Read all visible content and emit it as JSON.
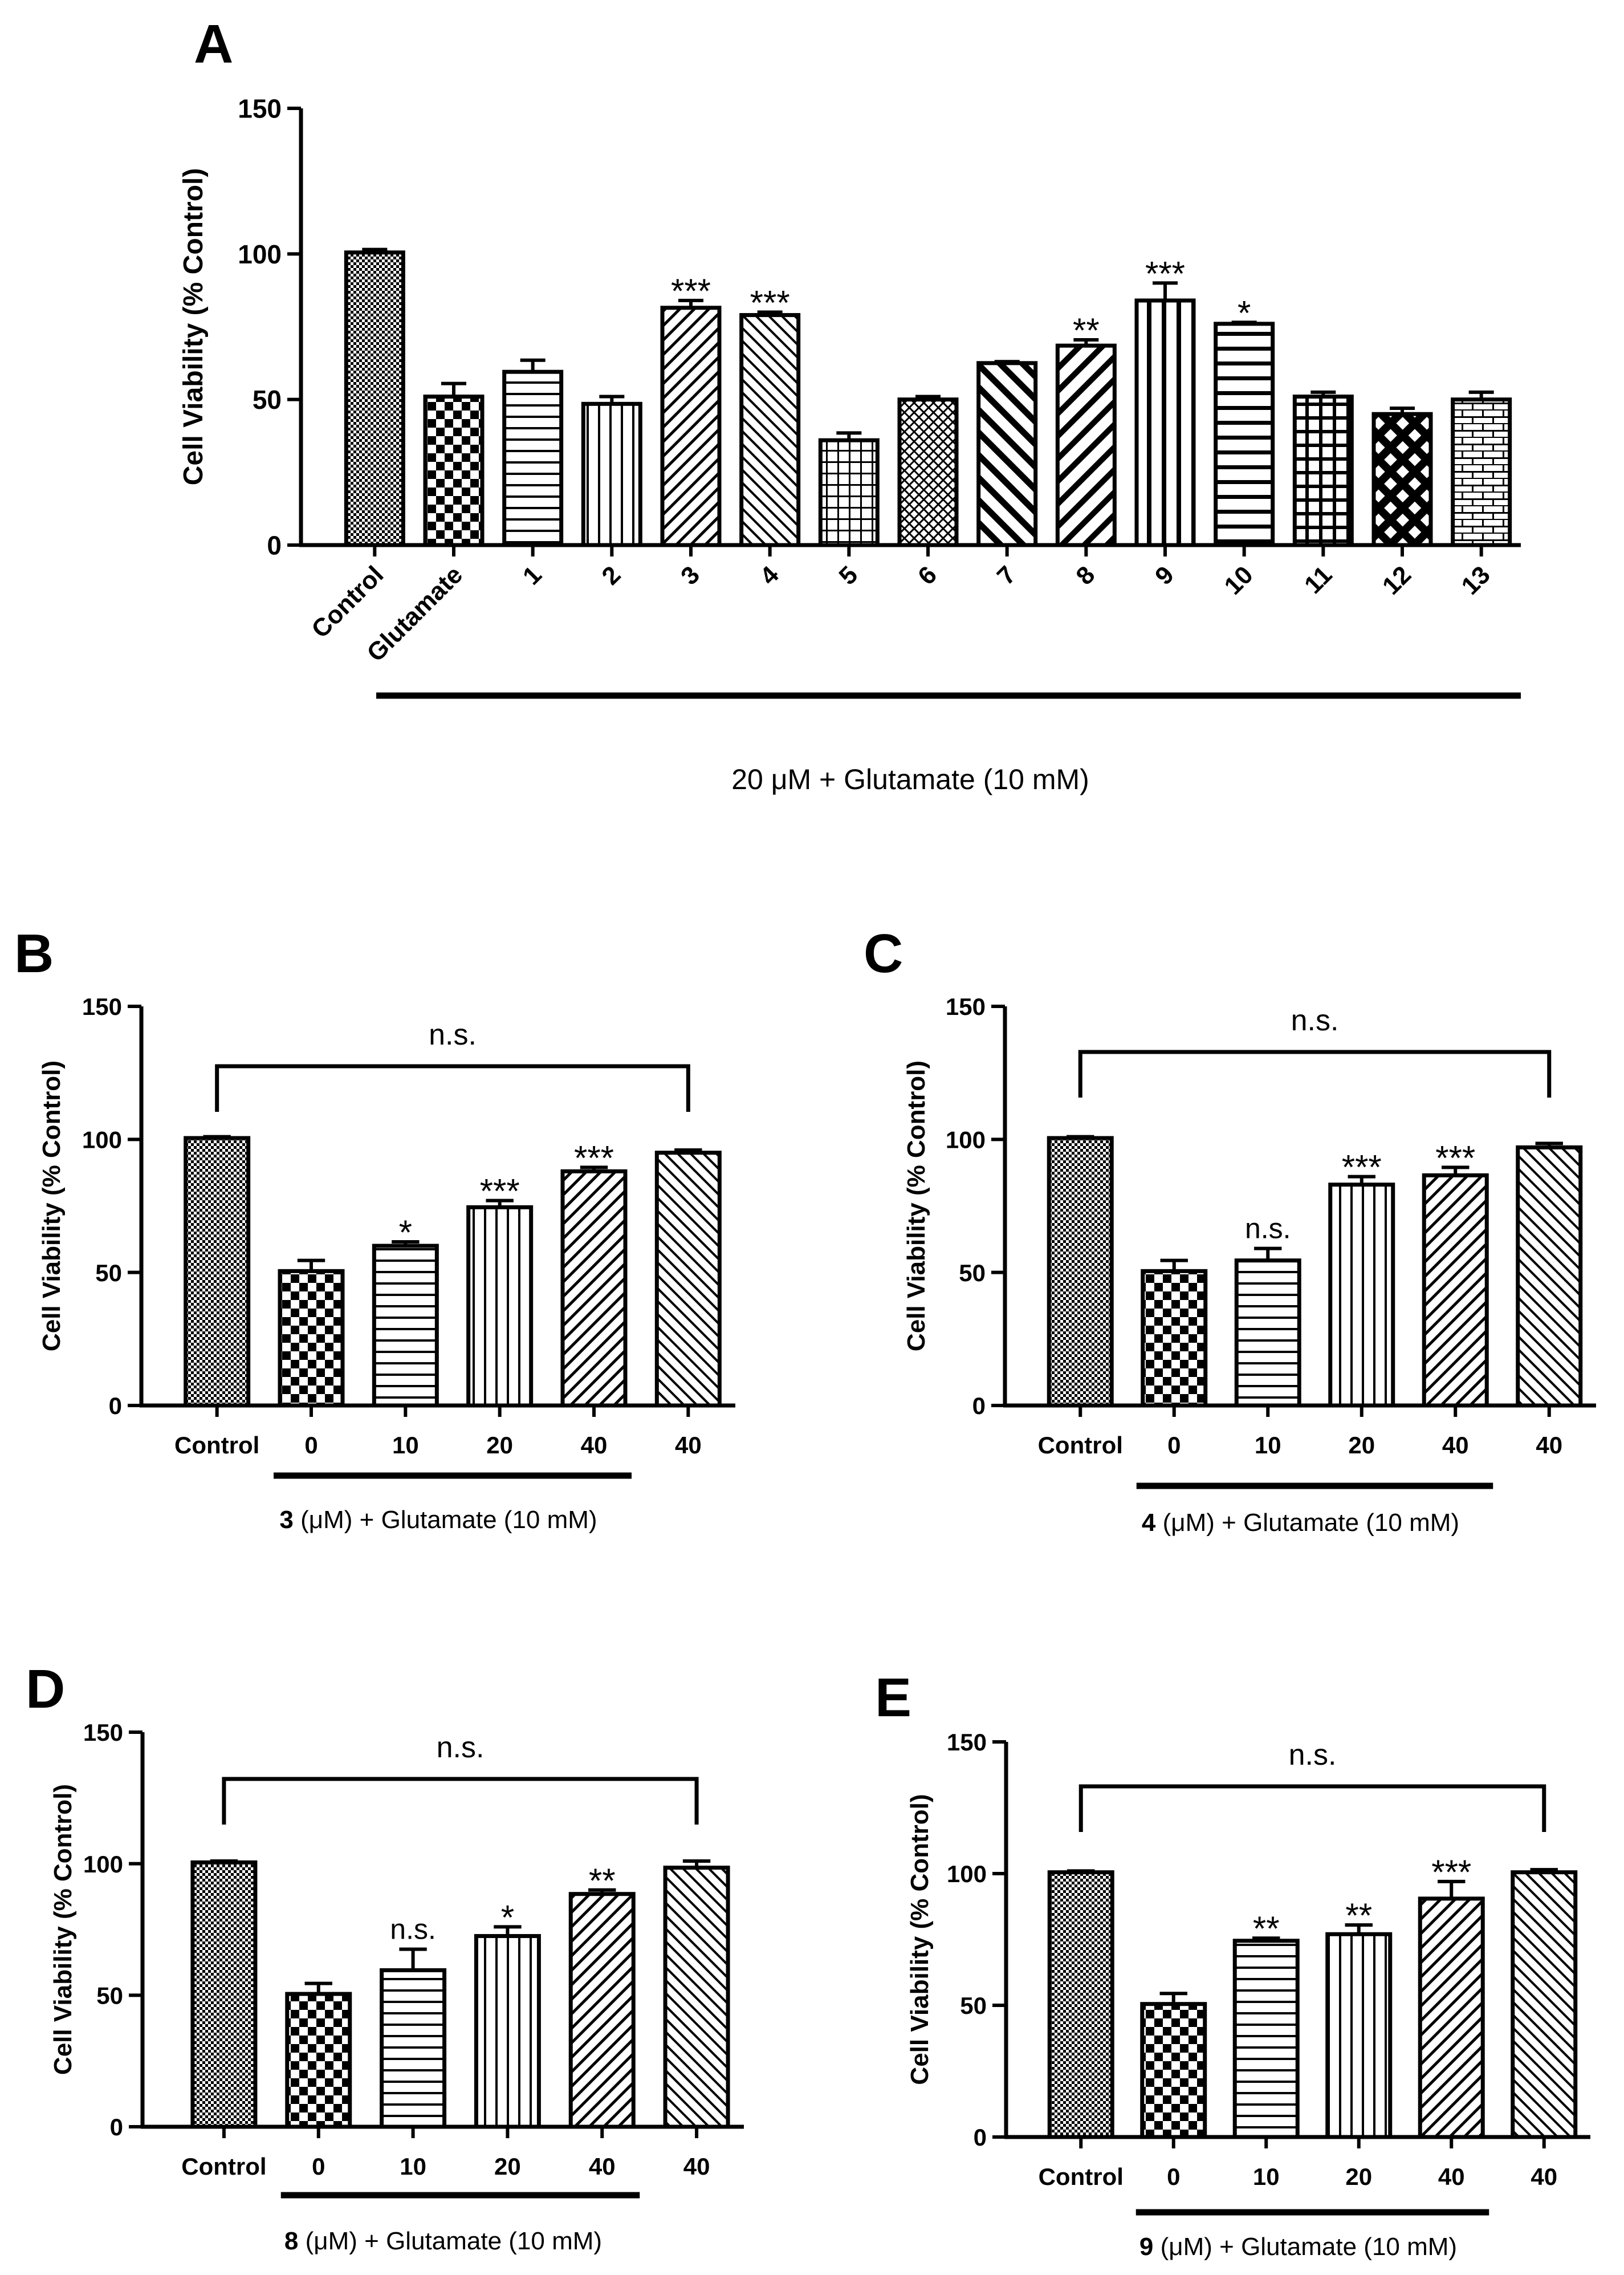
{
  "figure": {
    "colors": {
      "ink": "#000000",
      "paper": "#ffffff"
    },
    "patterns": [
      "checker-dense",
      "checker-open",
      "horizontal-lines",
      "vertical-lines",
      "diagonal-up",
      "diagonal-down",
      "grid",
      "dot-grid",
      "diagonal-down-thick",
      "diagonal-up-thick",
      "vertical-thick",
      "horizontal-thick",
      "grid-thick",
      "diamond-lattice",
      "brick"
    ]
  },
  "chart_data": [
    {
      "panel": "A",
      "type": "bar",
      "ylabel": "Cell Viability (% Control)",
      "ylim": [
        0,
        150
      ],
      "yticks": [
        "0",
        "50",
        "100",
        "150"
      ],
      "categories": [
        "Control",
        "Glutamate",
        "1",
        "2",
        "3",
        "4",
        "5",
        "6",
        "7",
        "8",
        "9",
        "10",
        "11",
        "12",
        "13"
      ],
      "values": [
        100.5,
        51,
        59.5,
        48.5,
        81.5,
        79,
        36,
        50,
        62.5,
        68.5,
        84,
        76,
        51,
        45,
        50
      ],
      "errors": [
        1,
        4.5,
        4,
        2.5,
        2.5,
        1,
        2.5,
        1,
        0.5,
        2,
        6,
        0.5,
        1.5,
        2,
        2.5
      ],
      "significance": [
        "",
        "",
        "",
        "",
        "***",
        "***",
        "",
        "",
        "",
        "**",
        "***",
        "*",
        "",
        "",
        ""
      ],
      "bar_patterns": [
        "checker-dense",
        "checker-open",
        "horizontal-lines",
        "vertical-lines",
        "diagonal-up",
        "diagonal-down",
        "grid",
        "dot-grid",
        "diagonal-down-thick",
        "diagonal-up-thick",
        "vertical-thick",
        "horizontal-thick",
        "grid-thick",
        "diamond-lattice",
        "brick"
      ],
      "underline_from_category": 1,
      "caption_number": "",
      "caption_text": "20 μM + Glutamate (10 mM)",
      "bracket_label": ""
    },
    {
      "panel": "B",
      "type": "bar",
      "ylabel": "Cell Viability (% Control)",
      "ylim": [
        0,
        150
      ],
      "yticks": [
        "0",
        "50",
        "100",
        "150"
      ],
      "categories": [
        "Control",
        "0",
        "10",
        "20",
        "40",
        "40"
      ],
      "values": [
        100.5,
        50.5,
        60,
        74.5,
        88,
        95
      ],
      "errors": [
        0.5,
        4,
        1.5,
        2.5,
        1.5,
        1
      ],
      "significance": [
        "",
        "",
        "*",
        "***",
        "***",
        ""
      ],
      "bar_patterns": [
        "checker-dense",
        "checker-open",
        "horizontal-lines",
        "vertical-lines",
        "diagonal-up",
        "diagonal-down"
      ],
      "underline_from_category": 1,
      "underline_to_category": 4,
      "caption_number": "3",
      "caption_text": " (μM) + Glutamate (10 mM)",
      "bracket_label": "n.s."
    },
    {
      "panel": "C",
      "type": "bar",
      "ylabel": "Cell Viability (% Control)",
      "ylim": [
        0,
        150
      ],
      "yticks": [
        "0",
        "50",
        "100",
        "150"
      ],
      "categories": [
        "Control",
        "0",
        "10",
        "20",
        "40",
        "40"
      ],
      "values": [
        100.5,
        50.5,
        54.5,
        83,
        86.5,
        97
      ],
      "errors": [
        0.5,
        4,
        4.5,
        3,
        3,
        1.5
      ],
      "significance": [
        "",
        "",
        "n.s.",
        "***",
        "***",
        ""
      ],
      "bar_patterns": [
        "checker-dense",
        "checker-open",
        "horizontal-lines",
        "vertical-lines",
        "diagonal-up",
        "diagonal-down"
      ],
      "underline_from_category": 1,
      "underline_to_category": 4,
      "caption_number": "4",
      "caption_text": " (μM) + Glutamate (10 mM)",
      "bracket_label": "n.s."
    },
    {
      "panel": "D",
      "type": "bar",
      "ylabel": "Cell Viability (% Control)",
      "ylim": [
        0,
        150
      ],
      "yticks": [
        "0",
        "50",
        "100",
        "150"
      ],
      "categories": [
        "Control",
        "0",
        "10",
        "20",
        "40",
        "40"
      ],
      "values": [
        100.5,
        50.5,
        59.5,
        72.5,
        88.5,
        98.5
      ],
      "errors": [
        0.5,
        4,
        8,
        3.5,
        1.5,
        2.5
      ],
      "significance": [
        "",
        "",
        "n.s.",
        "*",
        "**",
        ""
      ],
      "bar_patterns": [
        "checker-dense",
        "checker-open",
        "horizontal-lines",
        "vertical-lines",
        "diagonal-up",
        "diagonal-down"
      ],
      "underline_from_category": 1,
      "underline_to_category": 4,
      "caption_number": "8",
      "caption_text": " (μM) + Glutamate (10 mM)",
      "bracket_label": "n.s."
    },
    {
      "panel": "E",
      "type": "bar",
      "ylabel": "Cell Viability (% Control)",
      "ylim": [
        0,
        150
      ],
      "yticks": [
        "0",
        "50",
        "100",
        "150"
      ],
      "categories": [
        "Control",
        "0",
        "10",
        "20",
        "40",
        "40"
      ],
      "values": [
        100.5,
        50.5,
        74.5,
        77,
        90.5,
        100.5
      ],
      "errors": [
        0.5,
        4,
        1,
        3.5,
        6.5,
        1
      ],
      "significance": [
        "",
        "",
        "**",
        "**",
        "***",
        ""
      ],
      "bar_patterns": [
        "checker-dense",
        "checker-open",
        "horizontal-lines",
        "vertical-lines",
        "diagonal-up",
        "diagonal-down"
      ],
      "underline_from_category": 1,
      "underline_to_category": 4,
      "caption_number": "9",
      "caption_text": " (μM) + Glutamate (10 mM)",
      "bracket_label": "n.s."
    }
  ]
}
